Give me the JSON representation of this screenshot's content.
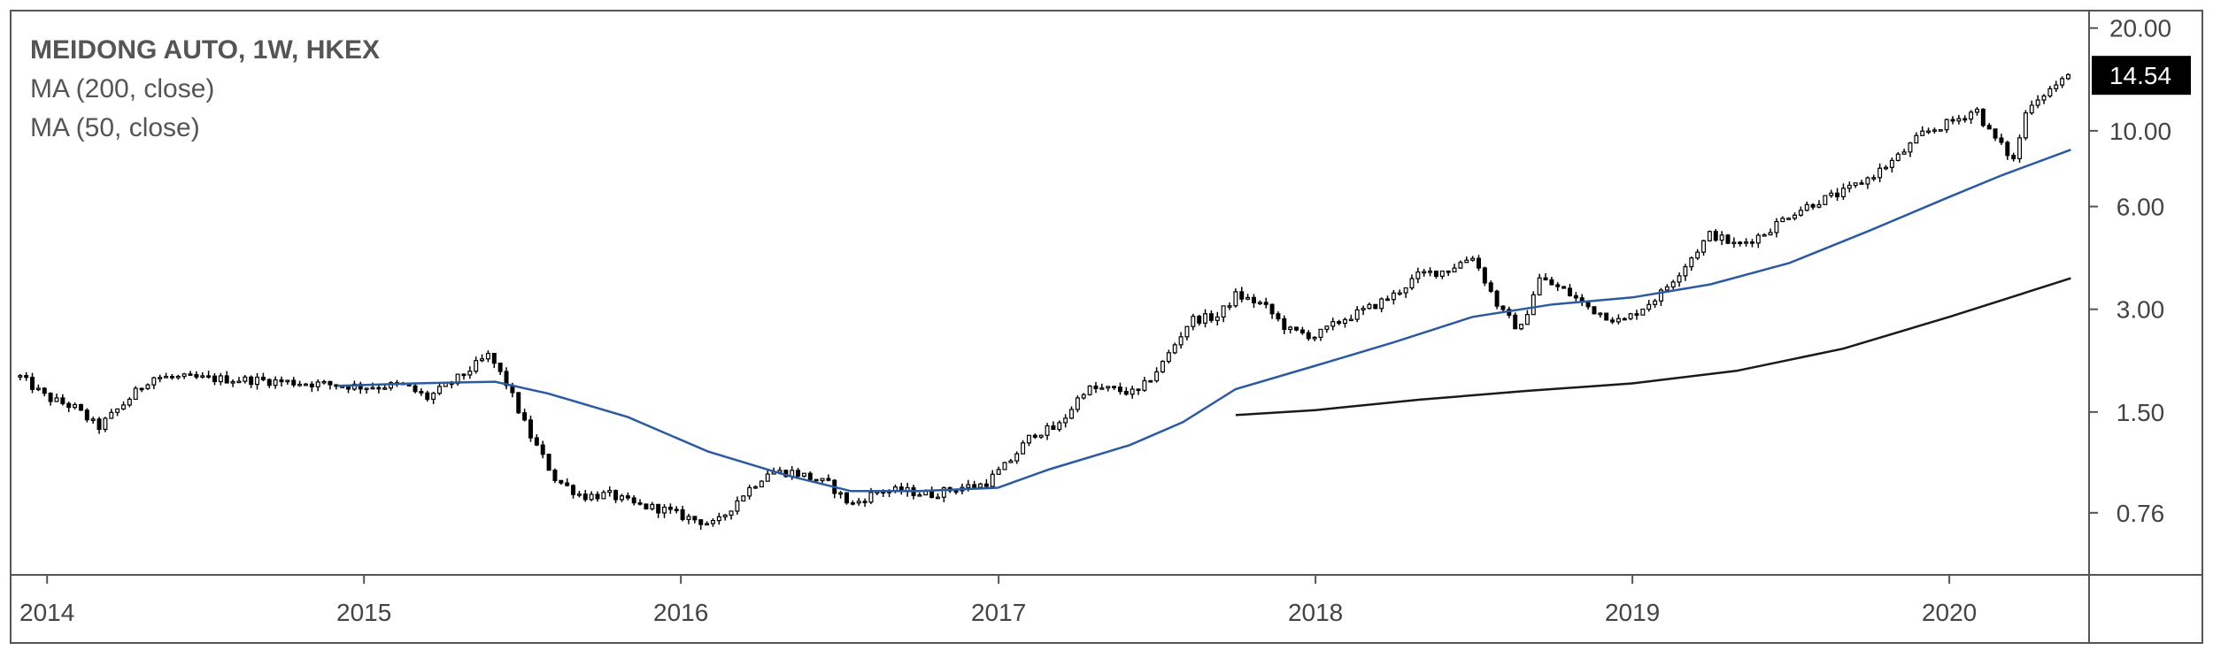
{
  "chart_data": {
    "type": "candlestick",
    "title": "MEIDONG AUTO, 1W, HKEX",
    "indicators": [
      "MA (200, close)",
      "MA (50, close)"
    ],
    "y_scale": "log",
    "ylim": [
      0.5,
      22.5
    ],
    "y_ticks": [
      {
        "value": 20.0,
        "label": "20.00"
      },
      {
        "value": 10.0,
        "label": "10.00"
      },
      {
        "value": 6.0,
        "label": "6.00"
      },
      {
        "value": 3.0,
        "label": "3.00"
      },
      {
        "value": 1.5,
        "label": "1.50"
      },
      {
        "value": 0.76,
        "label": "0.76"
      }
    ],
    "xlim": [
      "2013-11-20",
      "2020-06-10"
    ],
    "x_ticks": [
      {
        "date": "2014-01-01",
        "label": "2014"
      },
      {
        "date": "2015-01-01",
        "label": "2015"
      },
      {
        "date": "2016-01-01",
        "label": "2016"
      },
      {
        "date": "2017-01-01",
        "label": "2017"
      },
      {
        "date": "2018-01-01",
        "label": "2018"
      },
      {
        "date": "2019-01-01",
        "label": "2019"
      },
      {
        "date": "2020-01-01",
        "label": "2020"
      }
    ],
    "last_price": {
      "value": 14.54,
      "label": "14.54"
    },
    "price_path": [
      [
        "2013-12-01",
        1.9
      ],
      [
        "2014-01-01",
        1.65
      ],
      [
        "2014-02-01",
        1.55
      ],
      [
        "2014-03-01",
        1.35
      ],
      [
        "2014-04-01",
        1.6
      ],
      [
        "2014-05-01",
        1.9
      ],
      [
        "2014-07-01",
        1.88
      ],
      [
        "2014-09-01",
        1.86
      ],
      [
        "2014-11-01",
        1.82
      ],
      [
        "2015-01-01",
        1.78
      ],
      [
        "2015-02-15",
        1.8
      ],
      [
        "2015-03-15",
        1.65
      ],
      [
        "2015-04-15",
        1.85
      ],
      [
        "2015-05-25",
        2.2
      ],
      [
        "2015-06-15",
        1.8
      ],
      [
        "2015-07-10",
        1.3
      ],
      [
        "2015-08-10",
        0.95
      ],
      [
        "2015-09-10",
        0.85
      ],
      [
        "2015-10-10",
        0.86
      ],
      [
        "2015-11-10",
        0.8
      ],
      [
        "2015-12-10",
        0.78
      ],
      [
        "2016-01-05",
        0.74
      ],
      [
        "2016-02-10",
        0.7
      ],
      [
        "2016-03-10",
        0.85
      ],
      [
        "2016-04-10",
        1.0
      ],
      [
        "2016-05-10",
        1.0
      ],
      [
        "2016-06-20",
        0.92
      ],
      [
        "2016-07-15",
        0.8
      ],
      [
        "2016-08-15",
        0.88
      ],
      [
        "2016-09-15",
        0.88
      ],
      [
        "2016-10-15",
        0.86
      ],
      [
        "2016-11-15",
        0.9
      ],
      [
        "2016-12-15",
        0.92
      ],
      [
        "2017-01-10",
        1.05
      ],
      [
        "2017-02-10",
        1.3
      ],
      [
        "2017-03-10",
        1.35
      ],
      [
        "2017-04-10",
        1.75
      ],
      [
        "2017-05-10",
        1.75
      ],
      [
        "2017-06-10",
        1.7
      ],
      [
        "2017-07-10",
        2.1
      ],
      [
        "2017-08-10",
        2.8
      ],
      [
        "2017-09-10",
        2.85
      ],
      [
        "2017-10-01",
        3.3
      ],
      [
        "2017-11-01",
        3.1
      ],
      [
        "2017-12-01",
        2.6
      ],
      [
        "2018-01-01",
        2.5
      ],
      [
        "2018-02-01",
        2.8
      ],
      [
        "2018-03-01",
        3.0
      ],
      [
        "2018-04-01",
        3.3
      ],
      [
        "2018-05-01",
        3.8
      ],
      [
        "2018-06-01",
        3.9
      ],
      [
        "2018-07-01",
        4.3
      ],
      [
        "2018-08-01",
        3.0
      ],
      [
        "2018-08-25",
        2.6
      ],
      [
        "2018-09-15",
        3.7
      ],
      [
        "2018-10-15",
        3.4
      ],
      [
        "2018-11-15",
        3.0
      ],
      [
        "2018-12-20",
        2.75
      ],
      [
        "2019-02-01",
        3.3
      ],
      [
        "2019-03-01",
        4.0
      ],
      [
        "2019-04-01",
        5.0
      ],
      [
        "2019-05-01",
        4.6
      ],
      [
        "2019-06-01",
        5.0
      ],
      [
        "2019-07-01",
        5.7
      ],
      [
        "2019-08-01",
        6.2
      ],
      [
        "2019-09-01",
        6.6
      ],
      [
        "2019-10-01",
        7.3
      ],
      [
        "2019-11-01",
        8.3
      ],
      [
        "2019-12-01",
        9.8
      ],
      [
        "2020-01-10",
        10.8
      ],
      [
        "2020-02-01",
        11.6
      ],
      [
        "2020-02-15",
        10.0
      ],
      [
        "2020-03-15",
        8.2
      ],
      [
        "2020-04-01",
        12.0
      ],
      [
        "2020-05-01",
        13.5
      ],
      [
        "2020-05-20",
        14.54
      ]
    ],
    "ma_50": [
      [
        "2014-12-01",
        1.79
      ],
      [
        "2015-03-01",
        1.82
      ],
      [
        "2015-06-01",
        1.84
      ],
      [
        "2015-08-01",
        1.7
      ],
      [
        "2015-11-01",
        1.45
      ],
      [
        "2016-02-01",
        1.15
      ],
      [
        "2016-05-01",
        0.98
      ],
      [
        "2016-07-15",
        0.88
      ],
      [
        "2016-10-01",
        0.88
      ],
      [
        "2016-12-31",
        0.9
      ],
      [
        "2017-03-01",
        1.02
      ],
      [
        "2017-06-01",
        1.2
      ],
      [
        "2017-08-01",
        1.4
      ],
      [
        "2017-10-01",
        1.75
      ],
      [
        "2018-01-01",
        2.05
      ],
      [
        "2018-04-01",
        2.4
      ],
      [
        "2018-07-01",
        2.85
      ],
      [
        "2018-10-01",
        3.1
      ],
      [
        "2019-01-01",
        3.25
      ],
      [
        "2019-04-01",
        3.55
      ],
      [
        "2019-07-01",
        4.1
      ],
      [
        "2019-10-01",
        5.1
      ],
      [
        "2020-01-01",
        6.4
      ],
      [
        "2020-03-01",
        7.4
      ],
      [
        "2020-05-20",
        8.8
      ]
    ],
    "ma_200": [
      [
        "2017-10-01",
        1.47
      ],
      [
        "2018-01-01",
        1.52
      ],
      [
        "2018-05-01",
        1.63
      ],
      [
        "2018-09-01",
        1.73
      ],
      [
        "2019-01-01",
        1.82
      ],
      [
        "2019-05-01",
        1.98
      ],
      [
        "2019-09-01",
        2.3
      ],
      [
        "2020-01-01",
        2.85
      ],
      [
        "2020-05-20",
        3.7
      ]
    ],
    "colors": {
      "background": "#ffffff",
      "frame": "#555555",
      "candles": "#000000",
      "ma_50": "#2b5aa0",
      "ma_200": "#1a1a1a",
      "price_label_bg": "#000000",
      "text": "#555555"
    }
  }
}
